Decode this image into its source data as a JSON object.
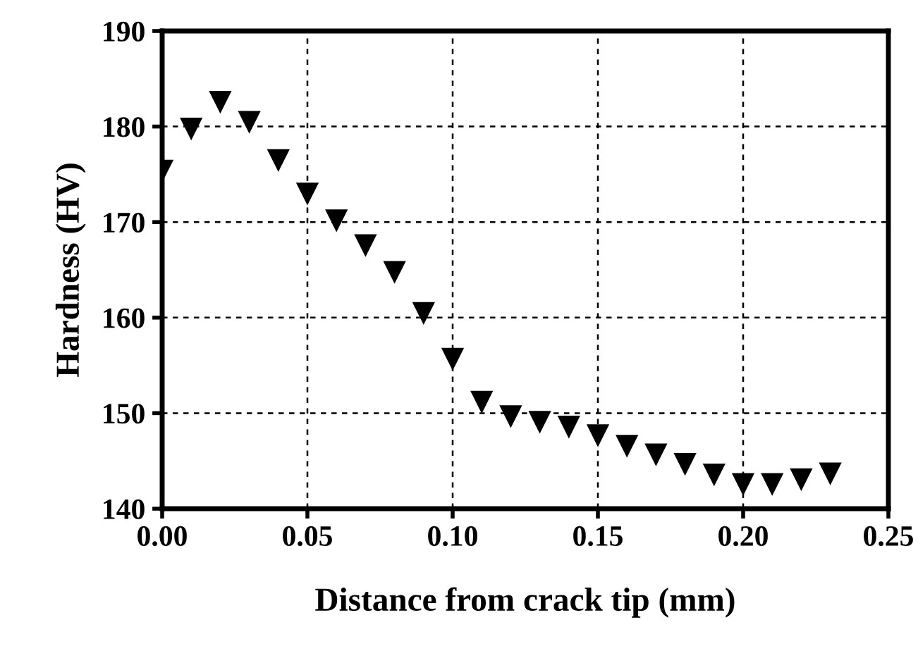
{
  "chart_data": {
    "type": "scatter",
    "xlabel": "Distance from crack tip (mm)",
    "ylabel": "Hardness (HV)",
    "x": [
      0,
      0.01,
      0.02,
      0.03,
      0.04,
      0.05,
      0.06,
      0.07,
      0.08,
      0.09,
      0.1,
      0.11,
      0.12,
      0.13,
      0.14,
      0.15,
      0.16,
      0.17,
      0.18,
      0.19,
      0.2,
      0.21,
      0.22,
      0.23
    ],
    "values": [
      175.4,
      179.8,
      182.6,
      180.5,
      176.5,
      173.0,
      170.2,
      167.6,
      164.8,
      160.5,
      155.7,
      151.2,
      149.7,
      149.1,
      148.6,
      147.7,
      146.6,
      145.7,
      144.7,
      143.6,
      142.6,
      142.6,
      143.1,
      143.7
    ],
    "color": "#000000",
    "marker": "triangle",
    "xlim": [
      0,
      0.25
    ],
    "xticks": [
      {
        "value": 0,
        "label": "0.00"
      },
      0.05,
      {
        "value": 0.1,
        "label": "0.10"
      },
      0.15,
      {
        "value": 0.2,
        "label": "0.20"
      },
      0.25
    ],
    "ylim": [
      140,
      190
    ],
    "yticks": [
      140,
      150,
      160,
      170,
      180,
      190
    ],
    "grid": true
  }
}
